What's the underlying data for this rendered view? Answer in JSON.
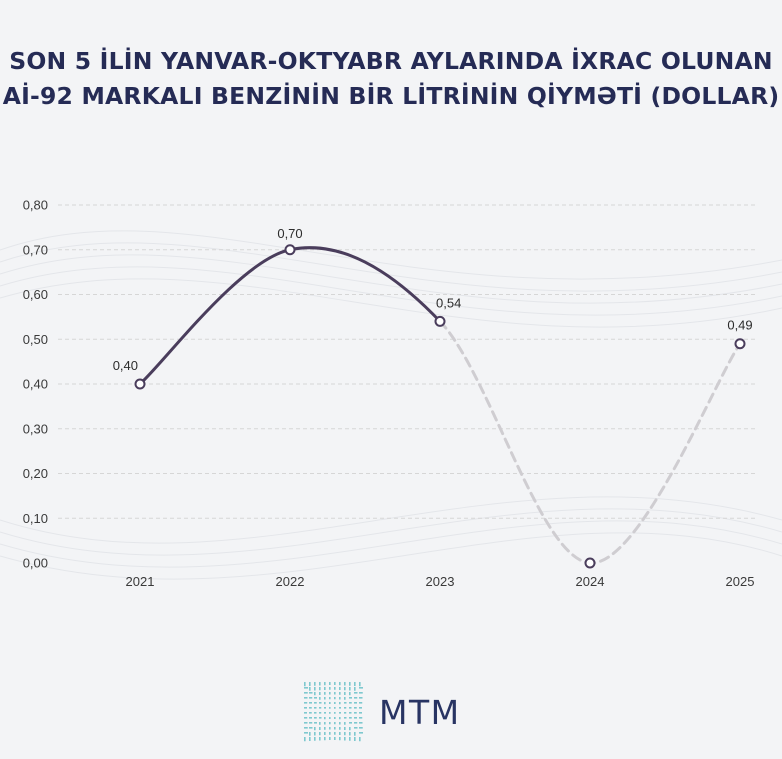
{
  "title_lines": [
    "SON 5 İLİN YANVAR-OKTYABR AYLARINDA İXRAC OLUNAN",
    "Aİ-92 MARKALI BENZİNİN BİR LİTRİNİN QİYMƏTİ (DOLLAR)"
  ],
  "chart_data": {
    "type": "line",
    "title": "SON 5 İLİN YANVAR-OKTYABR AYLARINDA İXRAC OLUNAN Aİ-92 MARKALI BENZİNİN BİR LİTRİNİN QİYMƏTİ (DOLLAR)",
    "categories": [
      "2021",
      "2022",
      "2023",
      "2024",
      "2025"
    ],
    "values": [
      0.4,
      0.7,
      0.54,
      0.0,
      0.49
    ],
    "data_labels": [
      "0,40",
      "0,70",
      "0,54",
      "",
      "0,49"
    ],
    "solid_through_index": 2,
    "ylim": [
      0,
      0.8
    ],
    "y_ticks": [
      0.0,
      0.1,
      0.2,
      0.3,
      0.4,
      0.5,
      0.6,
      0.7,
      0.8
    ],
    "y_tick_labels": [
      "0,00",
      "0,10",
      "0,20",
      "0,30",
      "0,40",
      "0,50",
      "0,60",
      "0,70",
      "0,80"
    ],
    "xlabel": "",
    "ylabel": "",
    "grid": true,
    "legend": "none",
    "colors": {
      "solid_line": "#4a3d5c",
      "dashed_line": "#cfcdd1",
      "marker_stroke": "#4a3d5c",
      "marker_fill": "#ffffff",
      "grid": "#d6d6d6",
      "title": "#252b55"
    }
  },
  "logo": {
    "text": "MTM",
    "icon": "mtm-logo-icon",
    "colors": [
      "#7ec8cf",
      "#283463"
    ]
  }
}
